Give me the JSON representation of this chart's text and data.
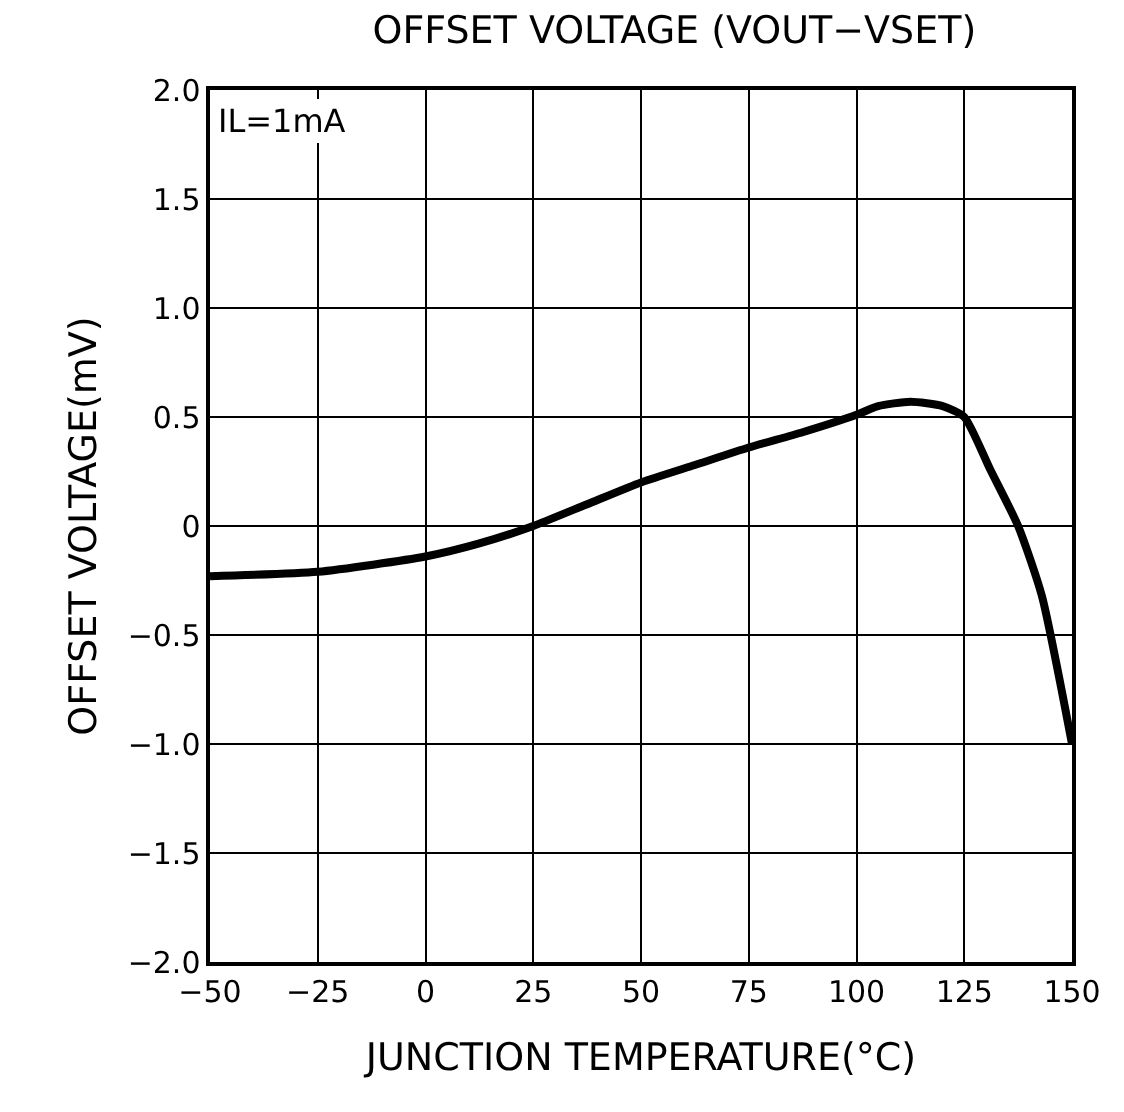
{
  "chart_data": {
    "type": "line",
    "title": "OFFSET VOLTAGE (VOUT−VSET)",
    "xlabel": "JUNCTION TEMPERATURE(°C)",
    "ylabel": "OFFSET VOLTAGE(mV)",
    "annotations": [
      "IL=1mA"
    ],
    "x": [
      -50,
      -25,
      0,
      12.5,
      25,
      37.5,
      50,
      62.5,
      75,
      87.5,
      100,
      105,
      112.5,
      120,
      125,
      131,
      137.5,
      143,
      150
    ],
    "series": [
      {
        "color": "#000000",
        "values": [
          -0.23,
          -0.21,
          -0.14,
          -0.08,
          0,
          0.1,
          0.2,
          0.28,
          0.36,
          0.43,
          0.51,
          0.55,
          0.57,
          0.55,
          0.5,
          0.26,
          0,
          -0.32,
          -1.0
        ]
      }
    ],
    "xlim": [
      -50,
      150
    ],
    "xticks": [
      {
        "value": -50,
        "label": "−50"
      },
      {
        "value": -25,
        "label": "−25"
      },
      0,
      25,
      50,
      75,
      100,
      125,
      150
    ],
    "ylim": [
      -2.0,
      2.0
    ],
    "yticks": [
      {
        "value": -2.0,
        "label": "−2.0"
      },
      {
        "value": -1.5,
        "label": "−1.5"
      },
      {
        "value": -1.0,
        "label": "−1.0"
      },
      {
        "value": -0.5,
        "label": "−0.5"
      },
      0,
      {
        "value": 0.5,
        "label": "0.5"
      },
      {
        "value": 1.0,
        "label": "1.0"
      },
      {
        "value": 1.5,
        "label": "1.5"
      },
      {
        "value": 2.0,
        "label": "2.0"
      }
    ],
    "grid": true,
    "marker": "none",
    "line_style": "solid"
  }
}
